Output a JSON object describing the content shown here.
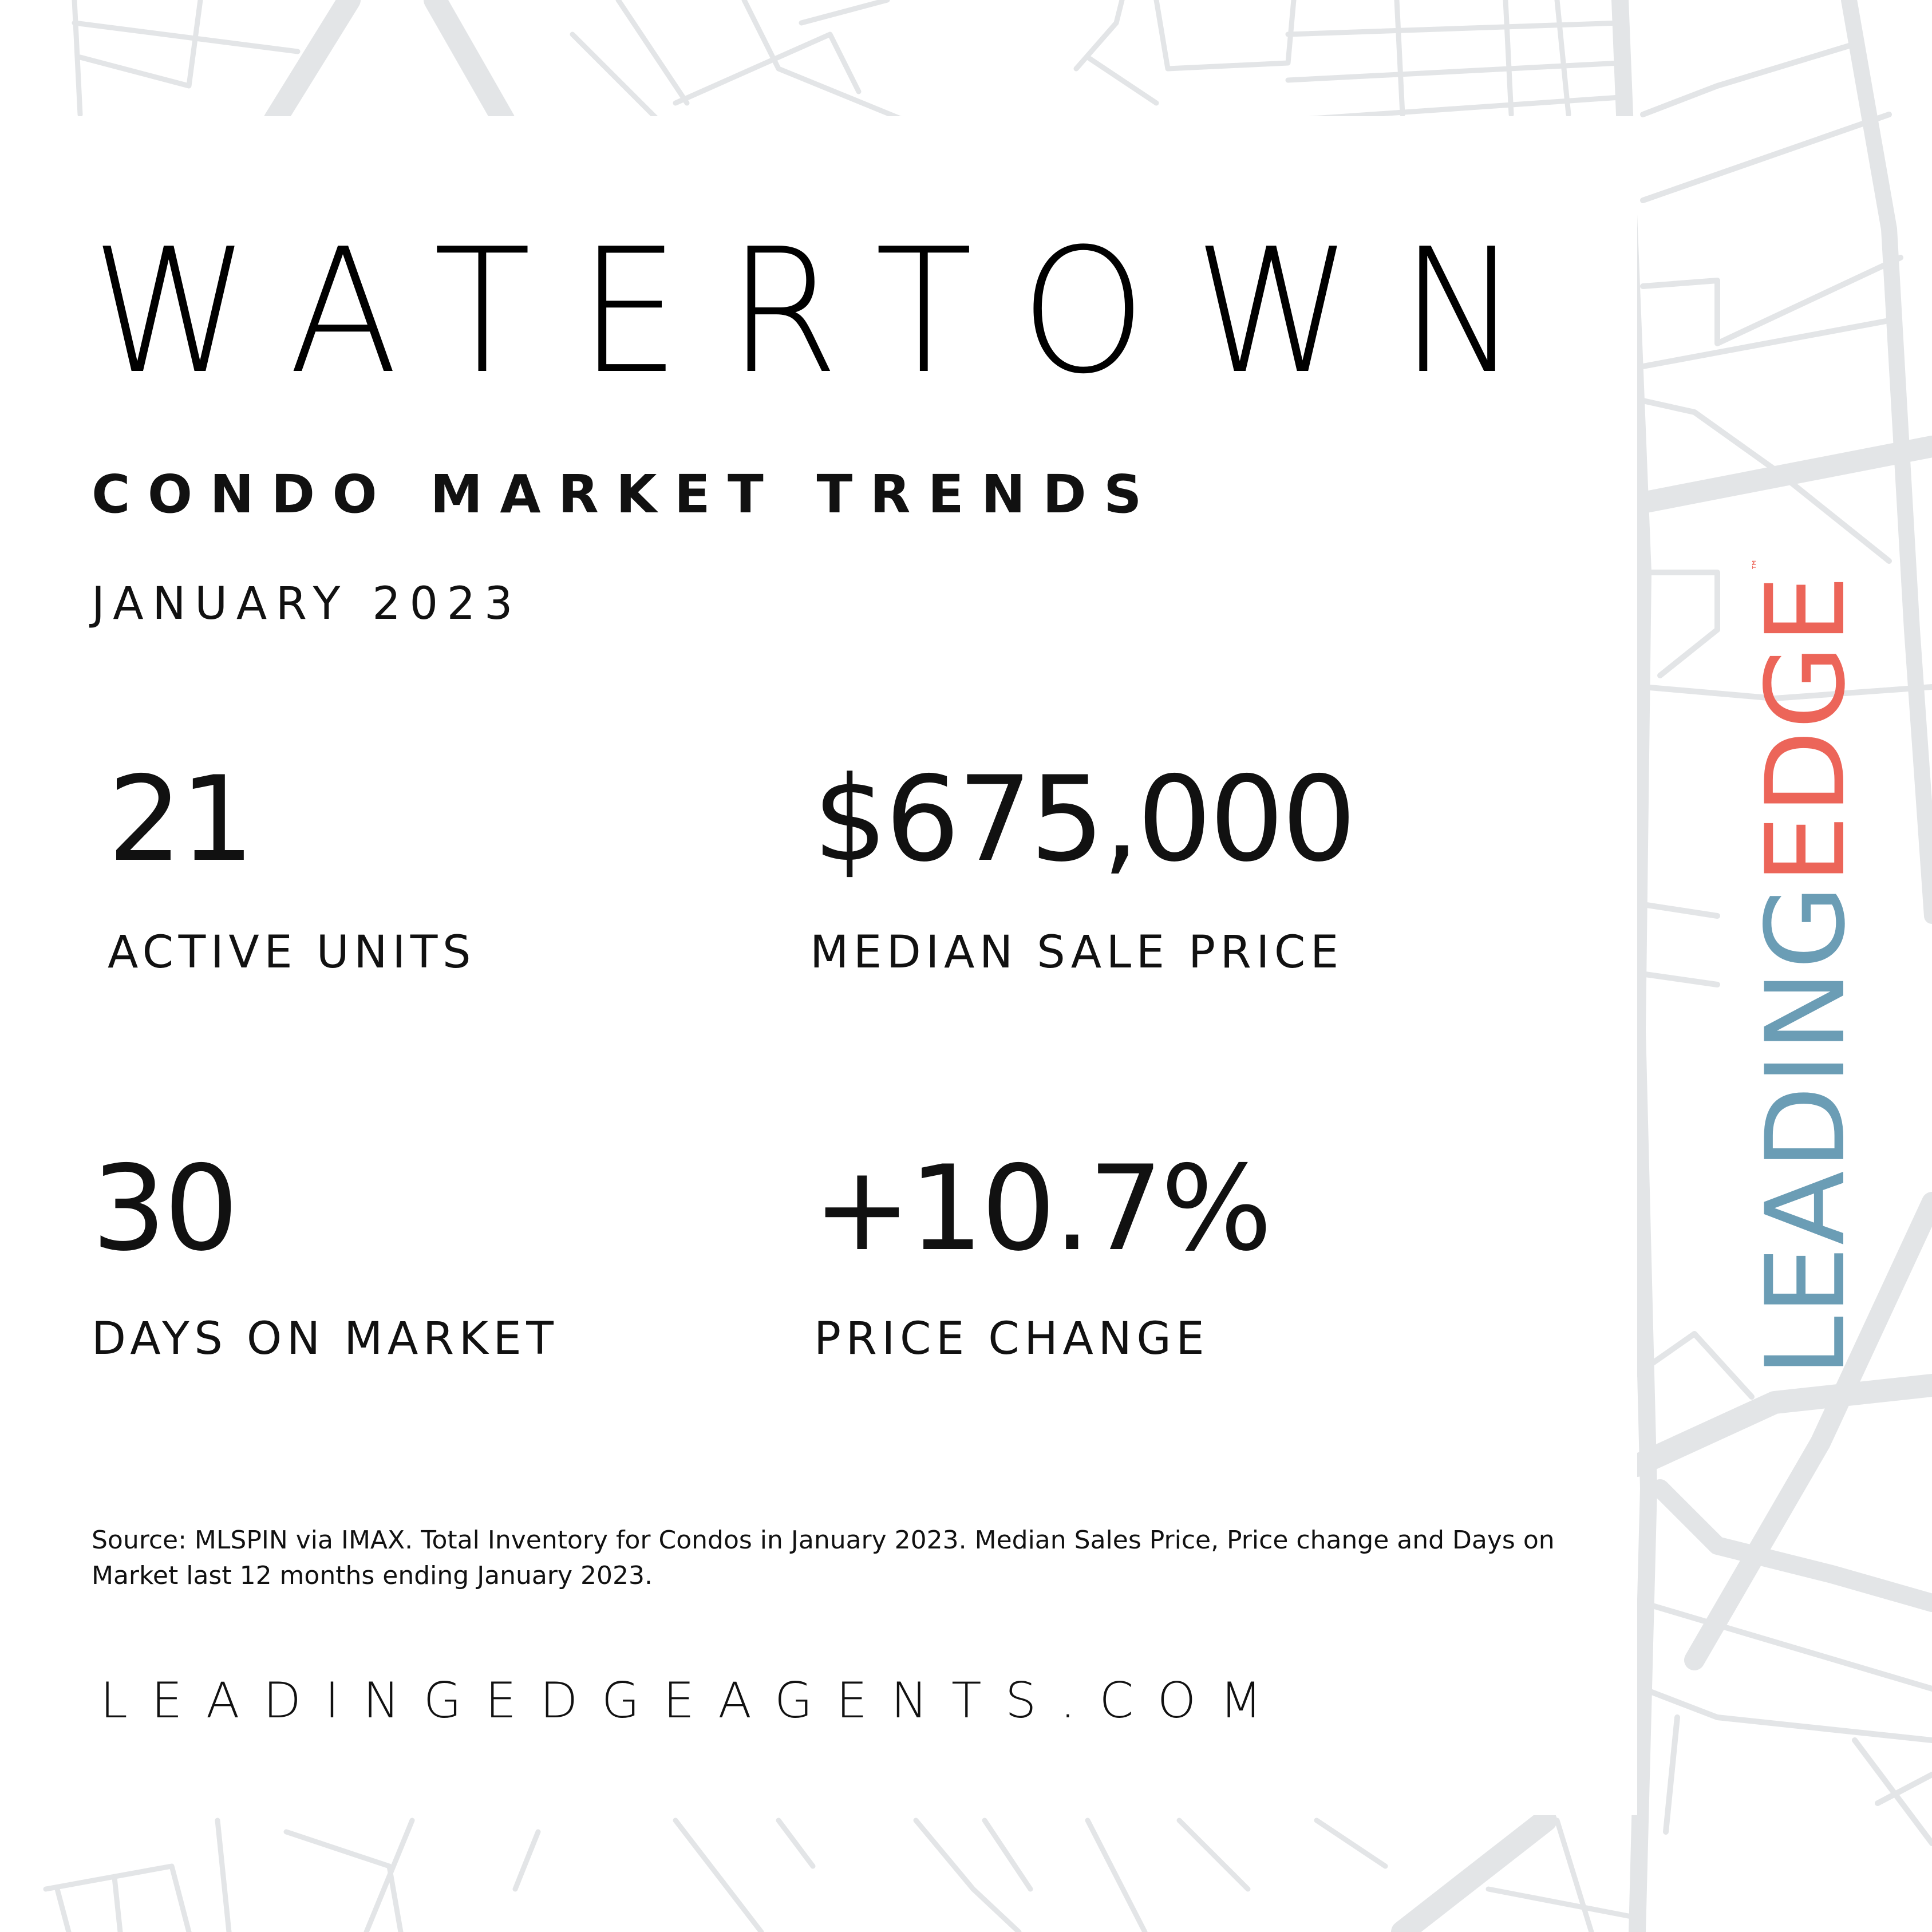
{
  "header": {
    "title": "WATERTOWN",
    "subtitle": "CONDO MARKET TRENDS",
    "date": "JANUARY 2023"
  },
  "stats": {
    "active_units": {
      "value": "21",
      "label": "ACTIVE UNITS"
    },
    "median_sale_price": {
      "value": "$675,000",
      "label": "MEDIAN SALE PRICE"
    },
    "days_on_market": {
      "value": "30",
      "label": "DAYS ON MARKET"
    },
    "price_change": {
      "value": "+10.7%",
      "label": "PRICE CHANGE"
    }
  },
  "footer": {
    "source": "Source: MLSPIN via IMAX. Total Inventory for Condos in January 2023. Median Sales Price, Price change and Days on Market last 12 months ending January 2023.",
    "website": "LEADINGEDGEAGENTS.COM"
  },
  "logo": {
    "part1": "LEADING",
    "part2": "EDGE",
    "mark": "™"
  },
  "colors": {
    "logo_blue": "#6b9db5",
    "logo_coral": "#ec6559",
    "map_lines": "#e3e5e7"
  }
}
